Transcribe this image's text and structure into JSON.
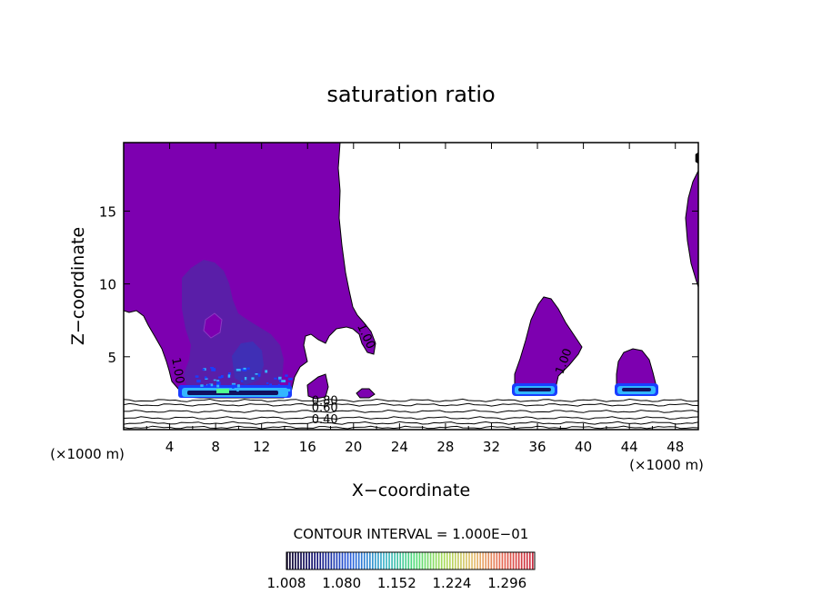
{
  "chart_data": {
    "type": "contour",
    "title": "saturation ratio",
    "xlabel": "X−coordinate",
    "ylabel": "Z−coordinate",
    "x_unit_label": "(×1000 m)",
    "z_unit_label": "(×1000 m)",
    "xlim": [
      0,
      50
    ],
    "ylim": [
      0,
      19.7
    ],
    "x_ticks": [
      4,
      8,
      12,
      16,
      20,
      24,
      28,
      32,
      36,
      40,
      44,
      48
    ],
    "y_ticks": [
      5,
      10,
      15
    ],
    "contour_interval_text": "CONTOUR INTERVAL = 1.000E−01",
    "colorbar_labels": [
      "1.008",
      "1.080",
      "1.152",
      "1.224",
      "1.296"
    ],
    "colorbar_range": [
      1.008,
      1.332
    ],
    "contour_labels": [
      {
        "text": "1.00",
        "x": 20.8,
        "z": 6.3,
        "angle": 65
      },
      {
        "text": "1.00",
        "x": 4.4,
        "z": 4.0,
        "angle": 80
      },
      {
        "text": "1.00",
        "x": 38.6,
        "z": 4.6,
        "angle": -70
      },
      {
        "text": "0.80",
        "x": 17.5,
        "z": 1.7,
        "angle": 0
      },
      {
        "text": "0.60",
        "x": 17.5,
        "z": 1.25,
        "angle": 0
      },
      {
        "text": "0.40",
        "x": 17.5,
        "z": 0.45,
        "angle": 0
      }
    ],
    "subsaturated_isolines_z": [
      0.15,
      0.45,
      0.8,
      1.25,
      1.7,
      2.0
    ],
    "colors": {
      "supersat_fill": "#7d00b0",
      "enhanced_fill": "#5a1ea8",
      "core_fill": "#3f2fb5",
      "ice_cyan": "#33b6ff",
      "ice_blue": "#1a3dff",
      "ice_navy": "#101060",
      "ice_green": "#50ff90"
    }
  }
}
